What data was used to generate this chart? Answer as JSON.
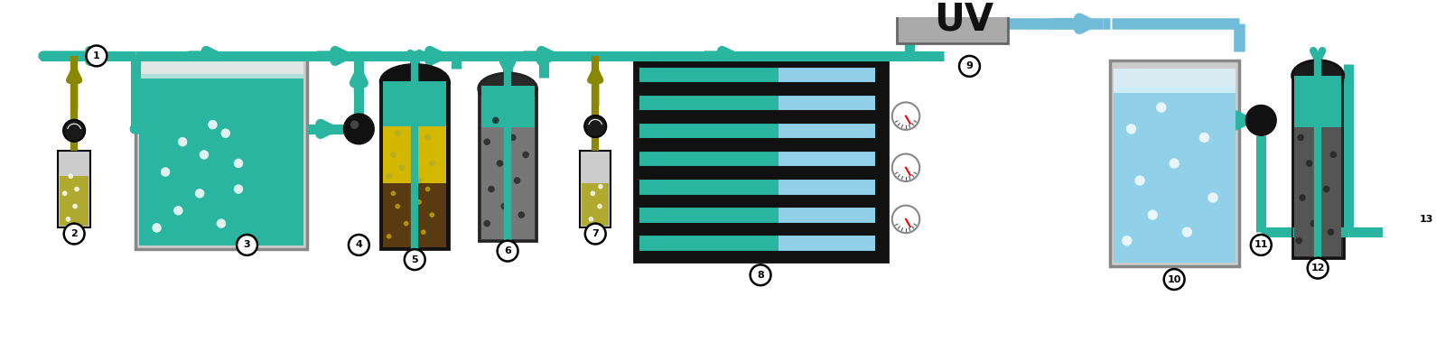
{
  "bg_color": "#ffffff",
  "teal": "#2ab5a0",
  "black": "#111111",
  "gray_light": "#cccccc",
  "gray_med": "#999999",
  "gray_dark": "#555555",
  "gray_box": "#aaaaaa",
  "yellow": "#d4b800",
  "yellow_sand": "#c8aa00",
  "olive": "#8a8800",
  "olive_light": "#b0aa30",
  "brown": "#5a3a10",
  "light_blue": "#90d0e8",
  "blue_arrow": "#70bcd8",
  "white": "#ffffff",
  "red": "#cc0000",
  "green": "#00aa00"
}
